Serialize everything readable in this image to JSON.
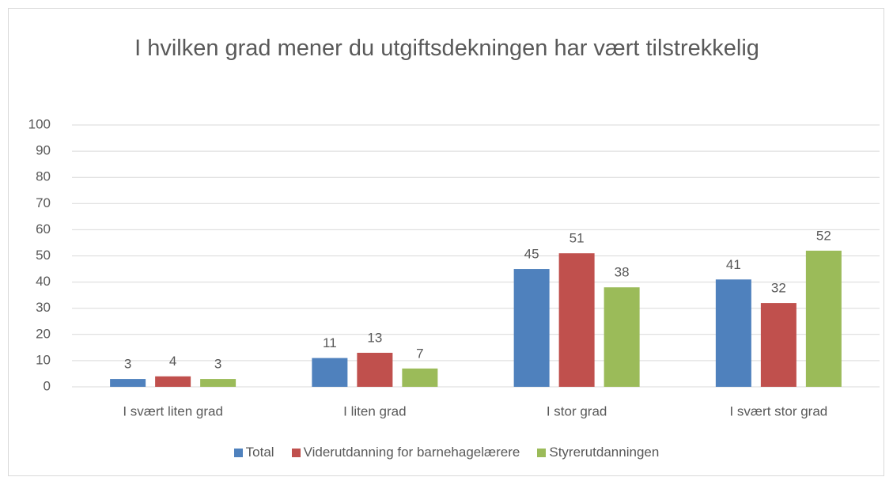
{
  "chart_data": {
    "type": "bar",
    "title": "I hvilken grad mener du utgiftsdekningen har vært tilstrekkelig",
    "categories": [
      "I svært liten grad",
      "I liten grad",
      "I stor grad",
      "I svært stor grad"
    ],
    "series": [
      {
        "name": "Total",
        "color": "#4f81bd",
        "values": [
          3,
          11,
          45,
          41
        ]
      },
      {
        "name": "Viderutdanning for barnehagelærere",
        "color": "#c0504d",
        "values": [
          4,
          13,
          51,
          32
        ]
      },
      {
        "name": "Styrerutdanningen",
        "color": "#9bbb59",
        "values": [
          3,
          7,
          38,
          52
        ]
      }
    ],
    "ylim": [
      0,
      100
    ],
    "yticks": [
      0,
      10,
      20,
      30,
      40,
      50,
      60,
      70,
      80,
      90,
      100
    ],
    "grid": true,
    "legend": "bottom"
  }
}
